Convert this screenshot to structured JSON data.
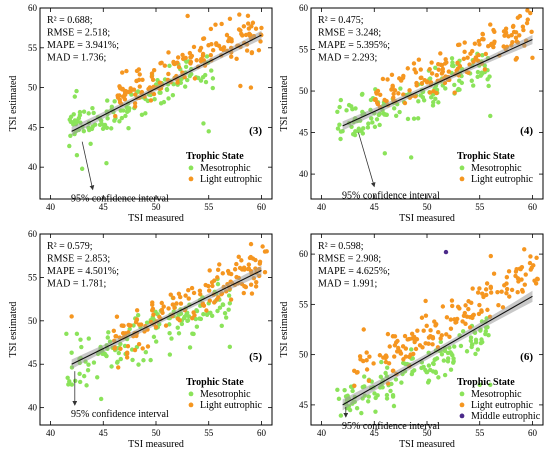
{
  "figure": {
    "tick_direction": "in",
    "frame": "box"
  },
  "chart_data": [
    {
      "type": "scatter",
      "panel_label": "(3)",
      "xlabel": "TSI measured",
      "ylabel": "TSI estimated",
      "xlim": [
        39,
        61
      ],
      "ylim": [
        36,
        60
      ],
      "xticks": [
        40,
        45,
        50,
        55,
        60
      ],
      "yticks": [
        40,
        45,
        50,
        55,
        60
      ],
      "stats": [
        "R² = 0.688;",
        "RMSE = 2.518;",
        "MAPE = 3.941%;",
        "MAD = 1.736;"
      ],
      "regression": {
        "x": [
          42,
          60
        ],
        "y": [
          44.5,
          56.6
        ]
      },
      "confidence_annotation": {
        "text": "95% confidence interval",
        "arrow_from": [
          43,
          43.2
        ],
        "arrow_to": [
          44,
          37.2
        ]
      },
      "legend": {
        "title": "Trophic State",
        "entries": [
          "Mesotrophic",
          "Light eutrophic"
        ],
        "position": "lower-right"
      },
      "series": [
        {
          "name": "Mesotrophic",
          "color": "#8be35a",
          "seed": 11,
          "count": 135,
          "x_range": [
            41.5,
            55.5
          ],
          "base": [
            42,
            45
          ],
          "slope": 0.55,
          "spread": 2.2,
          "extra": [
            [
              42.5,
              41.5
            ],
            [
              45.3,
              40.5
            ],
            [
              54.5,
              45.5
            ],
            [
              55,
              44.5
            ],
            [
              43,
              39.8
            ]
          ]
        },
        {
          "name": "Light eutrophic",
          "color": "#f59620",
          "seed": 23,
          "count": 160,
          "x_range": [
            46,
            60
          ],
          "base": [
            47,
            49.5
          ],
          "slope": 0.62,
          "spread": 2.2,
          "extra": [
            [
              53,
              59
            ],
            [
              58,
              50.2
            ],
            [
              59,
              50
            ],
            [
              47,
              49
            ],
            [
              60,
              57.5
            ]
          ]
        }
      ]
    },
    {
      "type": "scatter",
      "panel_label": "(4)",
      "xlabel": "TSI measured",
      "ylabel": "TSI estimated",
      "xlim": [
        39,
        61
      ],
      "ylim": [
        37,
        60
      ],
      "xticks": [
        40,
        45,
        50,
        55,
        60
      ],
      "yticks": [
        40,
        45,
        50,
        55,
        60
      ],
      "stats": [
        "R² = 0.475;",
        "RMSE = 3.248;",
        "MAPE = 5.395%;",
        "MAD = 2.293;"
      ],
      "regression": {
        "x": [
          42,
          60
        ],
        "y": [
          45.8,
          56.2
        ]
      },
      "confidence_annotation": {
        "text": "95% confidence interval",
        "arrow_from": [
          43.5,
          45
        ],
        "arrow_to": [
          45,
          38.5
        ]
      },
      "legend": {
        "title": "Trophic State",
        "entries": [
          "Mesotrophic",
          "Light eutrophic"
        ],
        "position": "lower-right"
      },
      "series": [
        {
          "name": "Mesotrophic",
          "color": "#8be35a",
          "seed": 31,
          "count": 140,
          "x_range": [
            41.5,
            56
          ],
          "base": [
            42,
            46
          ],
          "slope": 0.5,
          "spread": 2.3,
          "extra": [
            [
              41.5,
              47.5
            ],
            [
              46,
              42.5
            ],
            [
              48.5,
              42
            ],
            [
              43,
              44.8
            ],
            [
              56,
              47
            ]
          ]
        },
        {
          "name": "Light eutrophic",
          "color": "#f59620",
          "seed": 47,
          "count": 150,
          "x_range": [
            45,
            60
          ],
          "base": [
            46,
            49.5
          ],
          "slope": 0.58,
          "spread": 2.4,
          "extra": [
            [
              56,
              58
            ],
            [
              57.5,
              57
            ],
            [
              58,
              55.5
            ],
            [
              60,
              54
            ]
          ]
        }
      ]
    },
    {
      "type": "scatter",
      "panel_label": "(5)",
      "xlabel": "TSI measured",
      "ylabel": "TSI estimated",
      "xlim": [
        39,
        61
      ],
      "ylim": [
        38,
        60
      ],
      "xticks": [
        40,
        45,
        50,
        55,
        60
      ],
      "yticks": [
        40,
        45,
        50,
        55,
        60
      ],
      "stats": [
        "R² = 0.579;",
        "RMSE = 2.853;",
        "MAPE = 4.501%;",
        "MAD = 1.781;"
      ],
      "regression": {
        "x": [
          42,
          60
        ],
        "y": [
          45,
          55.8
        ]
      },
      "confidence_annotation": {
        "text": "95% confidence interval",
        "arrow_from": [
          42.3,
          44.2
        ],
        "arrow_to": [
          42.3,
          40.3
        ]
      },
      "legend": {
        "title": "Trophic State",
        "entries": [
          "Mesotrophic",
          "Light eutrophic"
        ],
        "position": "lower-right"
      },
      "series": [
        {
          "name": "Mesotrophic",
          "color": "#8be35a",
          "seed": 53,
          "count": 145,
          "x_range": [
            41.5,
            57
          ],
          "base": [
            42,
            44.5
          ],
          "slope": 0.55,
          "spread": 2.4,
          "extra": [
            [
              44.8,
              41
            ],
            [
              41.5,
              48.5
            ],
            [
              42.5,
              48.5
            ],
            [
              57,
              47
            ]
          ]
        },
        {
          "name": "Light eutrophic",
          "color": "#f59620",
          "seed": 67,
          "count": 155,
          "x_range": [
            46,
            60.5
          ],
          "base": [
            47,
            48.5
          ],
          "slope": 0.6,
          "spread": 2.2,
          "extra": [
            [
              60.5,
              58
            ],
            [
              42,
              50.5
            ],
            [
              56,
              56.5
            ]
          ]
        }
      ]
    },
    {
      "type": "scatter",
      "panel_label": "(6)",
      "xlabel": "TSI measured",
      "ylabel": "TSI estimated",
      "xlim": [
        39,
        61
      ],
      "ylim": [
        43,
        62
      ],
      "xticks": [
        40,
        45,
        50,
        55,
        60
      ],
      "yticks": [
        45,
        50,
        55,
        60
      ],
      "stats": [
        "R² = 0.598;",
        "RMSE = 2.908;",
        "MAPE = 4.625%;",
        "MAD = 1.991;"
      ],
      "regression": {
        "x": [
          42,
          60
        ],
        "y": [
          45,
          55.8
        ]
      },
      "confidence_annotation": {
        "text": "95% confidence interval",
        "arrow_from": [
          42.3,
          44.8
        ],
        "arrow_to": [
          42.3,
          43.8
        ]
      },
      "legend": {
        "title": "Trophic State",
        "entries": [
          "Mesotrophic",
          "Light eutrophic",
          "Middle eutrophic"
        ],
        "position": "lower-right"
      },
      "series": [
        {
          "name": "Mesotrophic",
          "color": "#8be35a",
          "seed": 71,
          "count": 140,
          "x_range": [
            41.5,
            56
          ],
          "base": [
            42,
            45
          ],
          "slope": 0.52,
          "spread": 1.9,
          "extra": [
            [
              41.5,
              46.5
            ],
            [
              55,
              47
            ],
            [
              56,
              47
            ]
          ]
        },
        {
          "name": "Light eutrophic",
          "color": "#f59620",
          "seed": 89,
          "count": 160,
          "x_range": [
            43,
            60.5
          ],
          "base": [
            44,
            48.5
          ],
          "slope": 0.6,
          "spread": 2.0,
          "extra": [
            [
              58.5,
              58.5
            ],
            [
              59,
              58.7
            ],
            [
              60.5,
              57.5
            ],
            [
              44,
              52.5
            ]
          ]
        },
        {
          "name": "Middle eutrophic",
          "color": "#4b2a8a",
          "points": [
            [
              51.8,
              60.2
            ]
          ]
        }
      ]
    }
  ]
}
